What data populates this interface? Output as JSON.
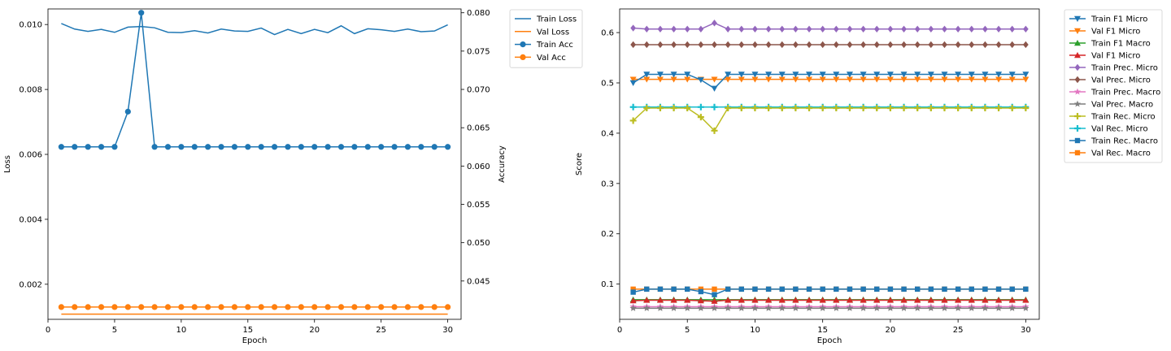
{
  "chart_data": [
    {
      "type": "line",
      "xlabel": "Epoch",
      "ylabel": "Loss",
      "y2label": "Accuracy",
      "xlim": [
        0,
        31
      ],
      "ylim": [
        0.00092,
        0.01048
      ],
      "y2lim": [
        0.04,
        0.0805
      ],
      "xticks": [
        0,
        5,
        10,
        15,
        20,
        25,
        30
      ],
      "yticks": [
        0.002,
        0.004,
        0.006,
        0.008,
        0.01
      ],
      "ytick_labels": [
        "0.002",
        "0.004",
        "0.006",
        "0.008",
        "0.010"
      ],
      "y2ticks": [
        0.045,
        0.05,
        0.055,
        0.06,
        0.065,
        0.07,
        0.075,
        0.08
      ],
      "y2tick_labels": [
        "0.045",
        "0.050",
        "0.055",
        "0.060",
        "0.065",
        "0.070",
        "0.075",
        "0.080"
      ],
      "legend_position": "outside-right",
      "x": [
        1,
        2,
        3,
        4,
        5,
        6,
        7,
        8,
        9,
        10,
        11,
        12,
        13,
        14,
        15,
        16,
        17,
        18,
        19,
        20,
        21,
        22,
        23,
        24,
        25,
        26,
        27,
        28,
        29,
        30
      ],
      "series": [
        {
          "name": "Train Loss",
          "axis": "left",
          "color": "#1f77b4",
          "marker": "none",
          "values": [
            0.01003,
            0.00986,
            0.00979,
            0.00985,
            0.00976,
            0.00992,
            0.00994,
            0.0099,
            0.00976,
            0.00975,
            0.00981,
            0.00974,
            0.00986,
            0.0098,
            0.00979,
            0.00989,
            0.00969,
            0.00985,
            0.00972,
            0.00985,
            0.00975,
            0.00996,
            0.00972,
            0.00987,
            0.00984,
            0.00979,
            0.00986,
            0.00978,
            0.0098,
            0.00999
          ]
        },
        {
          "name": "Val Loss",
          "axis": "left",
          "color": "#ff7f0e",
          "marker": "none",
          "values": [
            0.00108,
            0.00108,
            0.00108,
            0.00108,
            0.00108,
            0.00108,
            0.00108,
            0.00108,
            0.00108,
            0.00108,
            0.00108,
            0.00108,
            0.00108,
            0.00108,
            0.00108,
            0.00108,
            0.00108,
            0.00108,
            0.00108,
            0.00108,
            0.00108,
            0.00108,
            0.00108,
            0.00108,
            0.00108,
            0.00108,
            0.00108,
            0.00108,
            0.00108,
            0.00108
          ]
        },
        {
          "name": "Train Acc",
          "axis": "right",
          "color": "#1f77b4",
          "marker": "circle",
          "values": [
            0.0625,
            0.0625,
            0.0625,
            0.0625,
            0.0625,
            0.0671,
            0.08,
            0.0625,
            0.0625,
            0.0625,
            0.0625,
            0.0625,
            0.0625,
            0.0625,
            0.0625,
            0.0625,
            0.0625,
            0.0625,
            0.0625,
            0.0625,
            0.0625,
            0.0625,
            0.0625,
            0.0625,
            0.0625,
            0.0625,
            0.0625,
            0.0625,
            0.0625,
            0.0625
          ]
        },
        {
          "name": "Val Acc",
          "axis": "right",
          "color": "#ff7f0e",
          "marker": "circle",
          "values": [
            0.0416,
            0.0416,
            0.0416,
            0.0416,
            0.0416,
            0.0416,
            0.0416,
            0.0416,
            0.0416,
            0.0416,
            0.0416,
            0.0416,
            0.0416,
            0.0416,
            0.0416,
            0.0416,
            0.0416,
            0.0416,
            0.0416,
            0.0416,
            0.0416,
            0.0416,
            0.0416,
            0.0416,
            0.0416,
            0.0416,
            0.0416,
            0.0416,
            0.0416,
            0.0416
          ]
        }
      ]
    },
    {
      "type": "line",
      "xlabel": "Epoch",
      "ylabel": "Score",
      "xlim": [
        0,
        31
      ],
      "ylim": [
        0.03,
        0.647
      ],
      "xticks": [
        0,
        5,
        10,
        15,
        20,
        25,
        30
      ],
      "yticks": [
        0.1,
        0.2,
        0.3,
        0.4,
        0.5,
        0.6
      ],
      "ytick_labels": [
        "0.1",
        "0.2",
        "0.3",
        "0.4",
        "0.5",
        "0.6"
      ],
      "legend_position": "outside-right",
      "x": [
        1,
        2,
        3,
        4,
        5,
        6,
        7,
        8,
        9,
        10,
        11,
        12,
        13,
        14,
        15,
        16,
        17,
        18,
        19,
        20,
        21,
        22,
        23,
        24,
        25,
        26,
        27,
        28,
        29,
        30
      ],
      "series": [
        {
          "name": "Val Rec. Macro",
          "color": "#ff7f0e",
          "marker": "square",
          "values": [
            0.09,
            0.09,
            0.09,
            0.09,
            0.09,
            0.09,
            0.09,
            0.09,
            0.09,
            0.09,
            0.09,
            0.09,
            0.09,
            0.09,
            0.09,
            0.09,
            0.09,
            0.09,
            0.09,
            0.09,
            0.09,
            0.09,
            0.09,
            0.09,
            0.09,
            0.09,
            0.09,
            0.09,
            0.09,
            0.09
          ]
        },
        {
          "name": "Train Rec. Macro",
          "color": "#1f77b4",
          "marker": "square",
          "values": [
            0.084,
            0.09,
            0.09,
            0.09,
            0.09,
            0.085,
            0.079,
            0.09,
            0.09,
            0.09,
            0.09,
            0.09,
            0.09,
            0.09,
            0.09,
            0.09,
            0.09,
            0.09,
            0.09,
            0.09,
            0.09,
            0.09,
            0.09,
            0.09,
            0.09,
            0.09,
            0.09,
            0.09,
            0.09,
            0.09
          ]
        },
        {
          "name": "Train F1 Macro",
          "color": "#2ca02c",
          "marker": "triangle-up",
          "values": [
            0.069,
            0.069,
            0.069,
            0.069,
            0.069,
            0.069,
            0.069,
            0.069,
            0.069,
            0.069,
            0.069,
            0.069,
            0.069,
            0.069,
            0.069,
            0.069,
            0.069,
            0.069,
            0.069,
            0.069,
            0.069,
            0.069,
            0.069,
            0.069,
            0.069,
            0.069,
            0.069,
            0.069,
            0.069,
            0.069
          ]
        },
        {
          "name": "Val F1 Micro",
          "color": "#d62728",
          "marker": "triangle-up",
          "values": [
            0.067,
            0.068,
            0.068,
            0.068,
            0.068,
            0.067,
            0.066,
            0.068,
            0.068,
            0.068,
            0.068,
            0.068,
            0.068,
            0.068,
            0.068,
            0.068,
            0.068,
            0.068,
            0.068,
            0.068,
            0.068,
            0.068,
            0.068,
            0.068,
            0.068,
            0.068,
            0.068,
            0.068,
            0.068,
            0.068
          ]
        },
        {
          "name": "Train Prec. Macro",
          "color": "#e377c2",
          "marker": "star",
          "values": [
            0.055,
            0.055,
            0.055,
            0.055,
            0.055,
            0.055,
            0.055,
            0.055,
            0.055,
            0.055,
            0.055,
            0.055,
            0.055,
            0.055,
            0.055,
            0.055,
            0.055,
            0.055,
            0.055,
            0.055,
            0.055,
            0.055,
            0.055,
            0.055,
            0.055,
            0.055,
            0.055,
            0.055,
            0.055,
            0.055
          ]
        },
        {
          "name": "Val Prec. Macro",
          "color": "#7f7f7f",
          "marker": "star",
          "values": [
            0.052,
            0.052,
            0.052,
            0.052,
            0.052,
            0.052,
            0.052,
            0.052,
            0.052,
            0.052,
            0.052,
            0.052,
            0.052,
            0.052,
            0.052,
            0.052,
            0.052,
            0.052,
            0.052,
            0.052,
            0.052,
            0.052,
            0.052,
            0.052,
            0.052,
            0.052,
            0.052,
            0.052,
            0.052,
            0.052
          ]
        },
        {
          "name": "Val Rec. Micro",
          "color": "#17becf",
          "marker": "plus",
          "values": [
            0.452,
            0.452,
            0.452,
            0.452,
            0.452,
            0.452,
            0.452,
            0.452,
            0.452,
            0.452,
            0.452,
            0.452,
            0.452,
            0.452,
            0.452,
            0.452,
            0.452,
            0.452,
            0.452,
            0.452,
            0.452,
            0.452,
            0.452,
            0.452,
            0.452,
            0.452,
            0.452,
            0.452,
            0.452,
            0.452
          ]
        },
        {
          "name": "Train Rec. Micro",
          "color": "#bcbd22",
          "marker": "plus",
          "values": [
            0.425,
            0.45,
            0.45,
            0.45,
            0.45,
            0.432,
            0.405,
            0.45,
            0.45,
            0.45,
            0.45,
            0.45,
            0.45,
            0.45,
            0.45,
            0.45,
            0.45,
            0.45,
            0.45,
            0.45,
            0.45,
            0.45,
            0.45,
            0.45,
            0.45,
            0.45,
            0.45,
            0.45,
            0.45,
            0.45
          ]
        },
        {
          "name": "Val F1 Micro",
          "color": "#ff7f0e",
          "marker": "triangle-down",
          "values": [
            0.507,
            0.507,
            0.507,
            0.507,
            0.507,
            0.507,
            0.507,
            0.507,
            0.507,
            0.507,
            0.507,
            0.507,
            0.507,
            0.507,
            0.507,
            0.507,
            0.507,
            0.507,
            0.507,
            0.507,
            0.507,
            0.507,
            0.507,
            0.507,
            0.507,
            0.507,
            0.507,
            0.507,
            0.507,
            0.507
          ]
        },
        {
          "name": "Train F1 Micro",
          "color": "#1f77b4",
          "marker": "triangle-down",
          "values": [
            0.5,
            0.517,
            0.517,
            0.517,
            0.517,
            0.506,
            0.489,
            0.517,
            0.517,
            0.517,
            0.517,
            0.517,
            0.517,
            0.517,
            0.517,
            0.517,
            0.517,
            0.517,
            0.517,
            0.517,
            0.517,
            0.517,
            0.517,
            0.517,
            0.517,
            0.517,
            0.517,
            0.517,
            0.517,
            0.517
          ]
        },
        {
          "name": "Val Prec. Micro",
          "color": "#8c564b",
          "marker": "diamond",
          "values": [
            0.576,
            0.576,
            0.576,
            0.576,
            0.576,
            0.576,
            0.576,
            0.576,
            0.576,
            0.576,
            0.576,
            0.576,
            0.576,
            0.576,
            0.576,
            0.576,
            0.576,
            0.576,
            0.576,
            0.576,
            0.576,
            0.576,
            0.576,
            0.576,
            0.576,
            0.576,
            0.576,
            0.576,
            0.576,
            0.576
          ]
        },
        {
          "name": "Train Prec. Micro",
          "color": "#9467bd",
          "marker": "diamond",
          "values": [
            0.609,
            0.607,
            0.607,
            0.607,
            0.607,
            0.607,
            0.619,
            0.607,
            0.607,
            0.607,
            0.607,
            0.607,
            0.607,
            0.607,
            0.607,
            0.607,
            0.607,
            0.607,
            0.607,
            0.607,
            0.607,
            0.607,
            0.607,
            0.607,
            0.607,
            0.607,
            0.607,
            0.607,
            0.607,
            0.607
          ]
        }
      ],
      "legend_order": [
        "Train F1 Micro",
        "Val F1 Micro",
        "Train F1 Macro",
        "Val F1 Micro",
        "Train Prec. Micro",
        "Val Prec. Micro",
        "Train Prec. Macro",
        "Val Prec. Macro",
        "Train Rec. Micro",
        "Val Rec. Micro",
        "Train Rec. Macro",
        "Val Rec. Macro"
      ]
    }
  ]
}
